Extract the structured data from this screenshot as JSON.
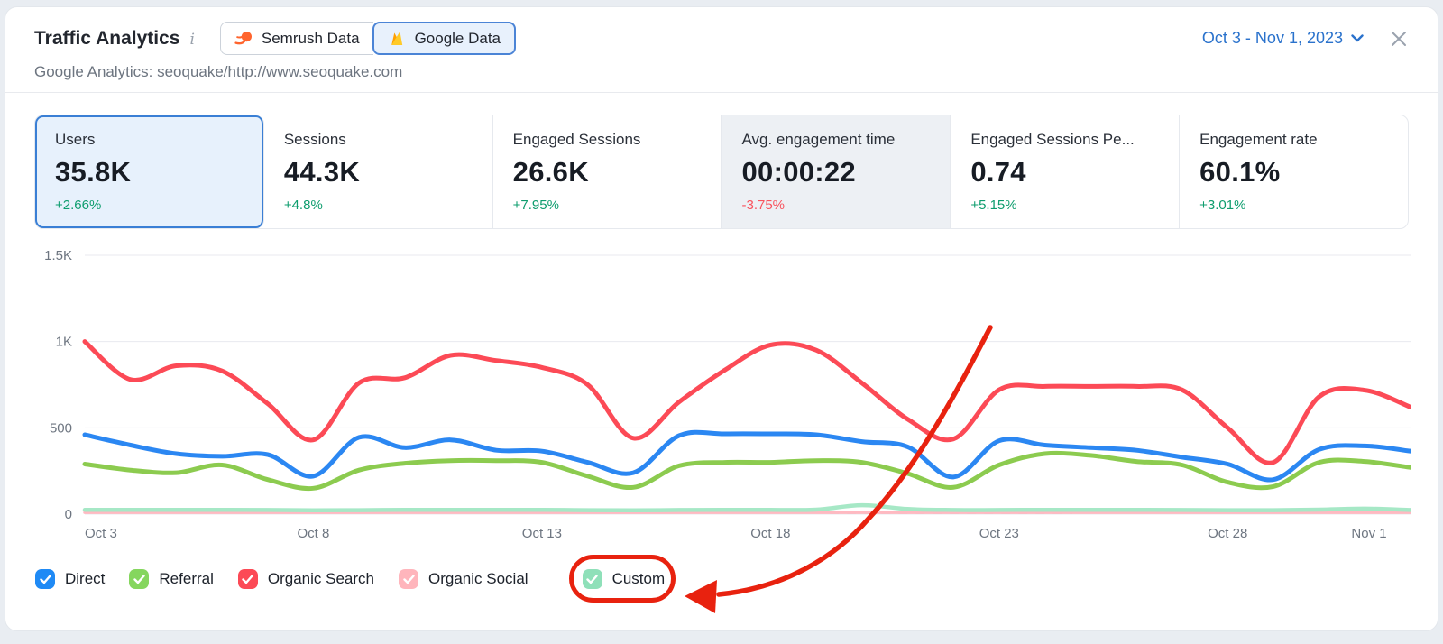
{
  "header": {
    "title": "Traffic Analytics",
    "info_icon_glyph": "i",
    "source_toggle": {
      "options": [
        {
          "label": "Semrush Data",
          "icon": "semrush-logo-icon",
          "selected": false
        },
        {
          "label": "Google Data",
          "icon": "firebase-flame-icon",
          "selected": true
        }
      ]
    },
    "date_range": "Oct 3 - Nov 1, 2023",
    "subtitle": "Google Analytics: seoquake/http://www.seoquake.com"
  },
  "metric_cards": [
    {
      "label": "Users",
      "value": "35.8K",
      "delta": "+2.66%",
      "trend": "up",
      "state": "selected"
    },
    {
      "label": "Sessions",
      "value": "44.3K",
      "delta": "+4.8%",
      "trend": "up",
      "state": "default"
    },
    {
      "label": "Engaged Sessions",
      "value": "26.6K",
      "delta": "+7.95%",
      "trend": "up",
      "state": "default"
    },
    {
      "label": "Avg. engagement time",
      "value": "00:00:22",
      "delta": "-3.75%",
      "trend": "down",
      "state": "muted"
    },
    {
      "label": "Engaged Sessions Pe...",
      "value": "0.74",
      "delta": "+5.15%",
      "trend": "up",
      "state": "default"
    },
    {
      "label": "Engagement rate",
      "value": "60.1%",
      "delta": "+3.01%",
      "trend": "up",
      "state": "default"
    }
  ],
  "chart_data": {
    "type": "line",
    "x": [
      "Oct 3",
      "Oct 4",
      "Oct 5",
      "Oct 6",
      "Oct 7",
      "Oct 8",
      "Oct 9",
      "Oct 10",
      "Oct 11",
      "Oct 12",
      "Oct 13",
      "Oct 14",
      "Oct 15",
      "Oct 16",
      "Oct 17",
      "Oct 18",
      "Oct 19",
      "Oct 20",
      "Oct 21",
      "Oct 22",
      "Oct 23",
      "Oct 24",
      "Oct 25",
      "Oct 26",
      "Oct 27",
      "Oct 28",
      "Oct 29",
      "Oct 30",
      "Oct 31",
      "Nov 1"
    ],
    "xticks": [
      {
        "index": 0,
        "label": "Oct 3"
      },
      {
        "index": 5,
        "label": "Oct 8"
      },
      {
        "index": 10,
        "label": "Oct 13"
      },
      {
        "index": 15,
        "label": "Oct 18"
      },
      {
        "index": 20,
        "label": "Oct 23"
      },
      {
        "index": 25,
        "label": "Oct 28"
      },
      {
        "index": 29,
        "label": "Nov 1"
      }
    ],
    "ylim": [
      0,
      1500
    ],
    "yticks": [
      {
        "value": 0,
        "label": "0"
      },
      {
        "value": 500,
        "label": "500"
      },
      {
        "value": 1000,
        "label": "1K"
      },
      {
        "value": 1500,
        "label": "1.5K"
      }
    ],
    "grid": "horizontal",
    "legend_position": "bottom",
    "series": [
      {
        "name": "Direct",
        "color": "#2b87f2",
        "width": 5,
        "values": [
          460,
          400,
          350,
          335,
          345,
          220,
          445,
          385,
          430,
          370,
          365,
          300,
          240,
          455,
          465,
          465,
          460,
          420,
          390,
          215,
          425,
          400,
          385,
          370,
          330,
          290,
          200,
          375,
          395,
          365
        ]
      },
      {
        "name": "Referral",
        "color": "#8ccb4f",
        "width": 5,
        "values": [
          290,
          255,
          240,
          285,
          200,
          150,
          255,
          295,
          310,
          310,
          300,
          220,
          155,
          280,
          300,
          300,
          310,
          300,
          235,
          155,
          285,
          350,
          340,
          305,
          285,
          185,
          160,
          300,
          305,
          270
        ]
      },
      {
        "name": "Organic Search",
        "color": "#fc4a56",
        "width": 5,
        "values": [
          1000,
          780,
          860,
          830,
          640,
          430,
          760,
          790,
          920,
          890,
          850,
          750,
          440,
          650,
          835,
          980,
          950,
          760,
          550,
          435,
          720,
          740,
          740,
          740,
          720,
          500,
          300,
          680,
          718,
          620
        ]
      },
      {
        "name": "Organic Social",
        "color": "#ffb9c1",
        "width": 3.5,
        "values": [
          10,
          10,
          10,
          10,
          10,
          10,
          10,
          10,
          10,
          10,
          10,
          10,
          10,
          10,
          10,
          10,
          10,
          10,
          10,
          10,
          10,
          10,
          10,
          10,
          10,
          10,
          10,
          10,
          10,
          10
        ]
      },
      {
        "name": "Custom",
        "color": "#a6e8c6",
        "width": 4.5,
        "values": [
          25,
          25,
          25,
          25,
          24,
          22,
          23,
          25,
          25,
          25,
          25,
          23,
          22,
          24,
          25,
          25,
          26,
          52,
          30,
          24,
          24,
          25,
          25,
          25,
          24,
          23,
          23,
          26,
          32,
          24
        ]
      }
    ],
    "dashed_segment": {
      "color": "#c7ccd4",
      "value": 10,
      "from_index": 16.3,
      "to_index": 21.6,
      "note": "gray dashed line near zero behind Custom line"
    }
  },
  "legend": [
    {
      "label": "Direct",
      "color": "#1f8af5",
      "checked": true
    },
    {
      "label": "Referral",
      "color": "#85d65e",
      "checked": true
    },
    {
      "label": "Organic Search",
      "color": "#fc4a56",
      "checked": true
    },
    {
      "label": "Organic Social",
      "color": "#ffb5bc",
      "checked": true
    },
    {
      "label": "Custom",
      "color": "#8fe0b9",
      "checked": true,
      "annotated": true
    }
  ],
  "annotation": {
    "color": "#e8220f",
    "target": "Custom legend item",
    "shape": "hand-drawn red arrow pointing to red-circled Custom checkbox"
  },
  "colors": {
    "accent_blue": "#3a7fd5",
    "date_link": "#2a72cc",
    "delta_up": "#0e9d6e",
    "delta_down": "#f9545e",
    "semrush_orange": "#ff642d",
    "firebase_yellow": "#ffca28",
    "firebase_orange": "#ffa000"
  }
}
